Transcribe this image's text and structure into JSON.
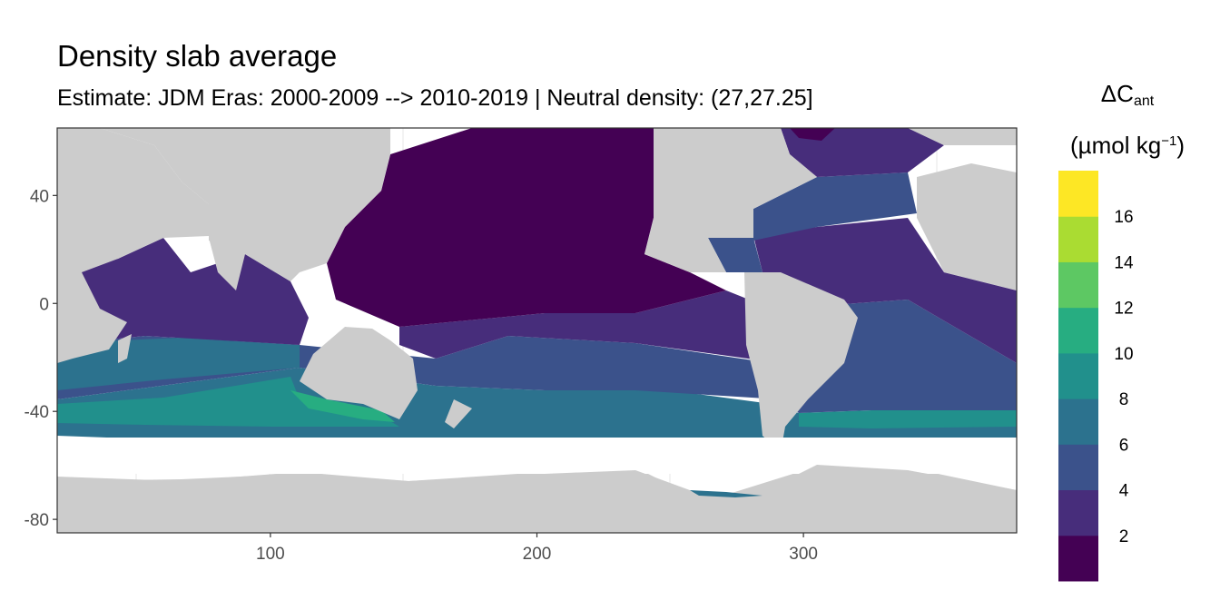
{
  "title": "Density slab average",
  "subtitle": "Estimate: JDM Eras: 2000-2009 --> 2010-2019 | Neutral density: (27,27.25]",
  "chart_data": {
    "type": "heatmap",
    "title": "Density slab average",
    "subtitle": "Estimate: JDM Eras: 2000-2009 --> 2010-2019 | Neutral density: (27,27.25]",
    "x_ticks": [
      100,
      200,
      300
    ],
    "y_ticks": [
      40,
      0,
      -40,
      -80
    ],
    "xlim": [
      20,
      380
    ],
    "ylim": [
      -85,
      65
    ],
    "legend": {
      "title_main": "ΔC",
      "title_sub": "ant",
      "unit_prefix": "(µmol kg",
      "unit_sup": "−1",
      "unit_suffix": ")",
      "bins": [
        0,
        2,
        4,
        6,
        8,
        10,
        12,
        14,
        16,
        18
      ],
      "labels": [
        "2",
        "4",
        "6",
        "8",
        "10",
        "12",
        "14",
        "16"
      ],
      "colors": [
        "#440154",
        "#472D7B",
        "#3B528B",
        "#2C728E",
        "#21908C",
        "#27AD81",
        "#5DC863",
        "#AADC32",
        "#FDE725"
      ],
      "placement": "right"
    },
    "land_color": "#cccccc",
    "no_data_color": "#ffffff"
  }
}
